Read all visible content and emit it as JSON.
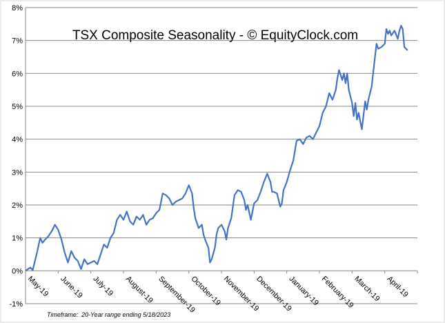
{
  "chart_data": {
    "type": "line",
    "title": "TSX Composite Seasonality - © EquityClock.com",
    "xlabel": "",
    "ylabel": "",
    "ylim": [
      -1,
      8
    ],
    "y_ticks": [
      "-1%",
      "0%",
      "1%",
      "2%",
      "3%",
      "4%",
      "5%",
      "6%",
      "7%",
      "8%"
    ],
    "x_ticks": [
      "May-19",
      "June-19",
      "July-19",
      "August-19",
      "September-19",
      "October-19",
      "November-19",
      "December-19",
      "January-19",
      "February-19",
      "March-19",
      "April-19"
    ],
    "grid": true,
    "line_color": "#4472c4",
    "series": [
      {
        "points": [
          [
            0.0,
            0.0
          ],
          [
            0.15,
            0.1
          ],
          [
            0.22,
            0.02
          ],
          [
            0.35,
            0.55
          ],
          [
            0.45,
            1.0
          ],
          [
            0.52,
            0.85
          ],
          [
            0.6,
            0.95
          ],
          [
            0.7,
            1.05
          ],
          [
            0.8,
            1.2
          ],
          [
            0.9,
            1.4
          ],
          [
            1.0,
            1.25
          ],
          [
            1.1,
            0.95
          ],
          [
            1.2,
            0.55
          ],
          [
            1.3,
            0.25
          ],
          [
            1.4,
            0.6
          ],
          [
            1.5,
            0.4
          ],
          [
            1.6,
            0.3
          ],
          [
            1.7,
            0.05
          ],
          [
            1.8,
            0.35
          ],
          [
            1.9,
            0.2
          ],
          [
            2.0,
            0.25
          ],
          [
            2.1,
            0.3
          ],
          [
            2.2,
            0.2
          ],
          [
            2.3,
            0.5
          ],
          [
            2.4,
            0.8
          ],
          [
            2.5,
            0.7
          ],
          [
            2.6,
            1.0
          ],
          [
            2.7,
            1.15
          ],
          [
            2.8,
            1.55
          ],
          [
            2.9,
            1.7
          ],
          [
            3.0,
            1.55
          ],
          [
            3.1,
            1.8
          ],
          [
            3.2,
            1.5
          ],
          [
            3.3,
            1.4
          ],
          [
            3.4,
            1.65
          ],
          [
            3.5,
            1.55
          ],
          [
            3.6,
            1.7
          ],
          [
            3.7,
            1.4
          ],
          [
            3.8,
            1.55
          ],
          [
            3.9,
            1.6
          ],
          [
            4.0,
            1.75
          ],
          [
            4.1,
            1.85
          ],
          [
            4.2,
            2.35
          ],
          [
            4.3,
            2.3
          ],
          [
            4.4,
            2.2
          ],
          [
            4.5,
            2.0
          ],
          [
            4.6,
            2.1
          ],
          [
            4.7,
            2.15
          ],
          [
            4.8,
            2.2
          ],
          [
            4.9,
            2.35
          ],
          [
            5.0,
            2.6
          ],
          [
            5.1,
            2.35
          ],
          [
            5.15,
            1.9
          ],
          [
            5.2,
            1.6
          ],
          [
            5.3,
            1.3
          ],
          [
            5.4,
            1.4
          ],
          [
            5.45,
            1.1
          ],
          [
            5.5,
            0.95
          ],
          [
            5.6,
            0.7
          ],
          [
            5.65,
            0.25
          ],
          [
            5.7,
            0.35
          ],
          [
            5.8,
            0.7
          ],
          [
            5.85,
            1.1
          ],
          [
            5.9,
            1.3
          ],
          [
            6.0,
            1.4
          ],
          [
            6.1,
            1.2
          ],
          [
            6.15,
            0.95
          ],
          [
            6.2,
            1.3
          ],
          [
            6.3,
            1.6
          ],
          [
            6.4,
            2.3
          ],
          [
            6.5,
            2.45
          ],
          [
            6.6,
            2.4
          ],
          [
            6.7,
            2.15
          ],
          [
            6.75,
            1.85
          ],
          [
            6.8,
            2.0
          ],
          [
            6.9,
            1.55
          ],
          [
            7.0,
            2.05
          ],
          [
            7.1,
            2.15
          ],
          [
            7.2,
            2.4
          ],
          [
            7.3,
            2.7
          ],
          [
            7.4,
            2.95
          ],
          [
            7.5,
            2.7
          ],
          [
            7.55,
            2.4
          ],
          [
            7.6,
            2.4
          ],
          [
            7.7,
            2.35
          ],
          [
            7.8,
            1.95
          ],
          [
            7.85,
            2.05
          ],
          [
            7.9,
            2.45
          ],
          [
            8.0,
            2.7
          ],
          [
            8.1,
            3.05
          ],
          [
            8.2,
            3.35
          ],
          [
            8.3,
            3.95
          ],
          [
            8.4,
            4.0
          ],
          [
            8.5,
            3.85
          ],
          [
            8.6,
            4.05
          ],
          [
            8.7,
            4.1
          ],
          [
            8.8,
            4.0
          ],
          [
            8.9,
            4.2
          ],
          [
            9.0,
            4.4
          ],
          [
            9.1,
            4.8
          ],
          [
            9.2,
            5.0
          ],
          [
            9.3,
            5.4
          ],
          [
            9.4,
            5.2
          ],
          [
            9.5,
            5.5
          ],
          [
            9.55,
            5.85
          ],
          [
            9.6,
            6.1
          ],
          [
            9.7,
            5.8
          ],
          [
            9.75,
            6.0
          ],
          [
            9.8,
            5.7
          ],
          [
            9.85,
            6.0
          ],
          [
            9.9,
            5.5
          ],
          [
            10.0,
            5.1
          ],
          [
            10.05,
            4.7
          ],
          [
            10.1,
            5.1
          ],
          [
            10.15,
            4.6
          ],
          [
            10.2,
            4.8
          ],
          [
            10.3,
            4.3
          ],
          [
            10.4,
            5.15
          ],
          [
            10.45,
            4.9
          ],
          [
            10.5,
            5.2
          ],
          [
            10.6,
            5.6
          ],
          [
            10.7,
            6.5
          ],
          [
            10.75,
            6.9
          ],
          [
            10.8,
            6.75
          ],
          [
            10.9,
            6.8
          ],
          [
            11.0,
            6.9
          ],
          [
            11.05,
            7.35
          ],
          [
            11.1,
            7.2
          ],
          [
            11.15,
            7.3
          ],
          [
            11.2,
            7.15
          ],
          [
            11.3,
            7.3
          ],
          [
            11.4,
            7.05
          ],
          [
            11.45,
            7.3
          ],
          [
            11.5,
            7.45
          ],
          [
            11.55,
            7.35
          ],
          [
            11.6,
            6.8
          ],
          [
            11.7,
            6.7
          ]
        ]
      }
    ]
  },
  "footer": {
    "timeframe_label": "Timeframe:",
    "timeframe_value": "20-Year range ending 5/18/2023"
  }
}
